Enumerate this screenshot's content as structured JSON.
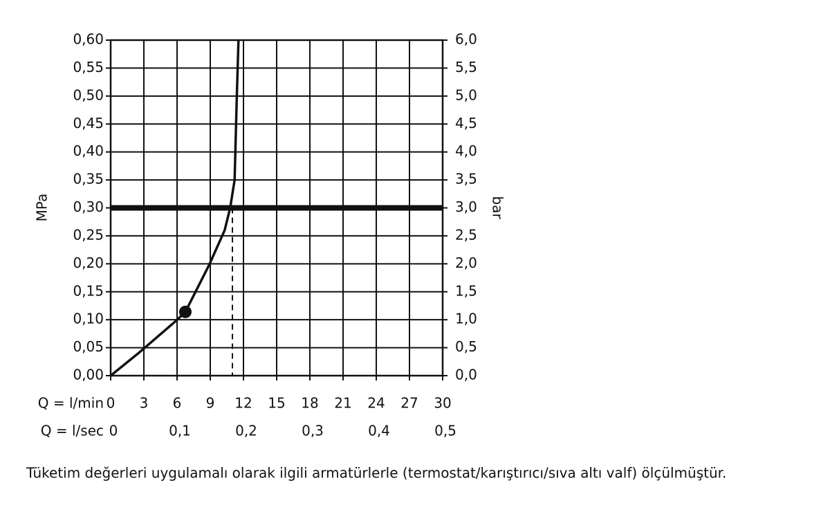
{
  "chart_data": {
    "type": "line",
    "ylabel": "MPa",
    "y2label": "bar",
    "xlabel": "Q = l/min",
    "x2label": "Q = l/sec",
    "note": "Tüketim değerleri uygulamalı olarak ilgili armatürlerle (termostat/karıştırıcı/sıva altı valf) ölçülmüştür.",
    "xlim": [
      0,
      30
    ],
    "xticks": [
      0,
      3,
      6,
      9,
      12,
      15,
      18,
      21,
      24,
      27,
      30
    ],
    "x2lim": [
      0,
      0.5
    ],
    "x2ticks": [
      0,
      {
        "value": 0.1,
        "label": "0,1"
      },
      {
        "value": 0.2,
        "label": "0,2"
      },
      {
        "value": 0.3,
        "label": "0,3"
      },
      {
        "value": 0.4,
        "label": "0,4"
      },
      {
        "value": 0.5,
        "label": "0,5"
      }
    ],
    "ylim": [
      0,
      0.6
    ],
    "yticks": [
      {
        "value": 0,
        "label": "0,00"
      },
      {
        "value": 0.05,
        "label": "0,05"
      },
      {
        "value": 0.1,
        "label": "0,10"
      },
      {
        "value": 0.15,
        "label": "0,15"
      },
      {
        "value": 0.2,
        "label": "0,20"
      },
      {
        "value": 0.25,
        "label": "0,25"
      },
      {
        "value": 0.3,
        "label": "0,30"
      },
      {
        "value": 0.35,
        "label": "0,35"
      },
      {
        "value": 0.4,
        "label": "0,40"
      },
      {
        "value": 0.45,
        "label": "0,45"
      },
      {
        "value": 0.5,
        "label": "0,50"
      },
      {
        "value": 0.55,
        "label": "0,55"
      },
      {
        "value": 0.6,
        "label": "0,60"
      }
    ],
    "y2lim": [
      0,
      6
    ],
    "y2ticks": [
      {
        "value": 0,
        "label": "0,0"
      },
      {
        "value": 0.5,
        "label": "0,5"
      },
      {
        "value": 1,
        "label": "1,0"
      },
      {
        "value": 1.5,
        "label": "1,5"
      },
      {
        "value": 2,
        "label": "2,0"
      },
      {
        "value": 2.5,
        "label": "2,5"
      },
      {
        "value": 3,
        "label": "3,0"
      },
      {
        "value": 3.5,
        "label": "3,5"
      },
      {
        "value": 4,
        "label": "4,0"
      },
      {
        "value": 4.5,
        "label": "4,5"
      },
      {
        "value": 5,
        "label": "5,0"
      },
      {
        "value": 5.5,
        "label": "5,5"
      },
      {
        "value": 6,
        "label": "6,0"
      }
    ],
    "grid": true,
    "series": [
      {
        "color": "#111111",
        "x": [
          0,
          2.5,
          5.9,
          6.75,
          8.9,
          10.3,
          10.8,
          11.2,
          11.4,
          11.55
        ],
        "values": [
          0,
          0.04,
          0.098,
          0.114,
          0.198,
          0.26,
          0.3,
          0.35,
          0.5,
          0.6
        ]
      }
    ],
    "marker": {
      "x": 6.75,
      "y": 0.114
    },
    "reference_pressure": 0.3,
    "reference_flow": 11
  }
}
